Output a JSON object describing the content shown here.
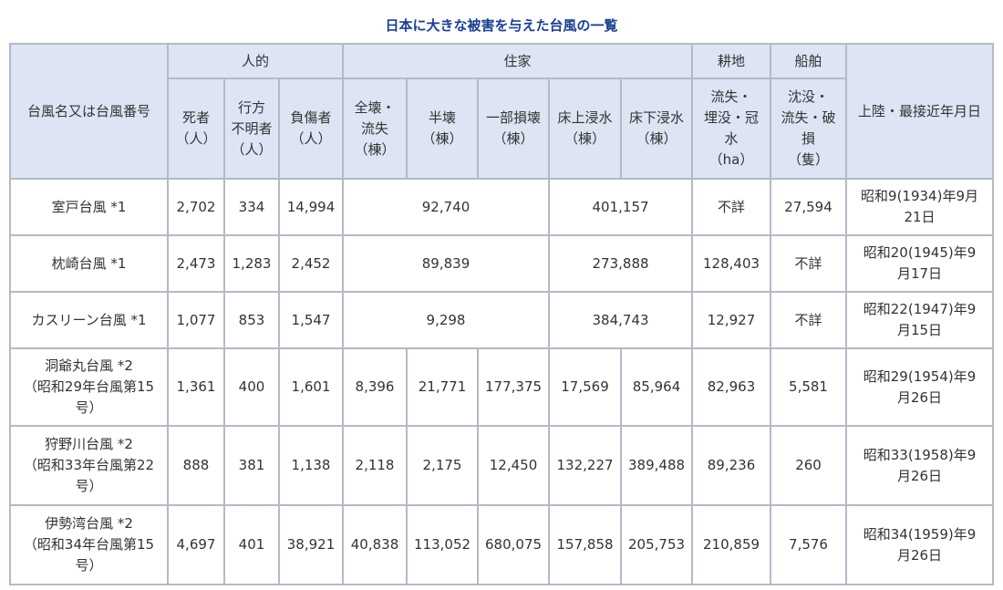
{
  "caption": "日本に大きな被害を与えた台風の一覧",
  "header": {
    "name_col": "台風名又は台風番号",
    "groups": {
      "human": "人的",
      "housing": "住家",
      "farmland": "耕地",
      "ships": "船舶"
    },
    "date_col": "上陸・最接近年月日",
    "sub": {
      "deaths": [
        "死者",
        "（人）"
      ],
      "missing": [
        "行方",
        "不明者",
        "（人）"
      ],
      "injured": [
        "負傷者",
        "（人）"
      ],
      "destroyed": [
        "全壊・",
        "流失",
        "（棟）"
      ],
      "half": [
        "半壊",
        "（棟）"
      ],
      "partial": [
        "一部損壊",
        "（棟）"
      ],
      "above_floor": [
        "床上浸水",
        "（棟）"
      ],
      "below_floor": [
        "床下浸水",
        "（棟）"
      ],
      "farmland_detail": [
        "流失・",
        "埋没・冠",
        "水",
        "（ha）"
      ],
      "ships_detail": [
        "沈没・",
        "流失・破",
        "損",
        "（隻）"
      ]
    }
  },
  "rows": [
    {
      "name": [
        "室戸台風 *1"
      ],
      "deaths": "2,702",
      "missing": "334",
      "injured": "14,994",
      "housing_damage": "92,740",
      "flood": "401,157",
      "farmland": "不詳",
      "ships": "27,594",
      "date": [
        "昭和9(1934)年9月",
        "21日"
      ]
    },
    {
      "name": [
        "枕崎台風 *1"
      ],
      "deaths": "2,473",
      "missing": "1,283",
      "injured": "2,452",
      "housing_damage": "89,839",
      "flood": "273,888",
      "farmland": "128,403",
      "ships": "不詳",
      "date": [
        "昭和20(1945)年9",
        "月17日"
      ]
    },
    {
      "name": [
        "カスリーン台風 *1"
      ],
      "deaths": "1,077",
      "missing": "853",
      "injured": "1,547",
      "housing_damage": "9,298",
      "flood": "384,743",
      "farmland": "12,927",
      "ships": "不詳",
      "date": [
        "昭和22(1947)年9",
        "月15日"
      ]
    },
    {
      "name": [
        "洞爺丸台風 *2",
        "（昭和29年台風第15",
        "号）"
      ],
      "deaths": "1,361",
      "missing": "400",
      "injured": "1,601",
      "destroyed": "8,396",
      "half": "21,771",
      "partial": "177,375",
      "above_floor": "17,569",
      "below_floor": "85,964",
      "farmland": "82,963",
      "ships": "5,581",
      "date": [
        "昭和29(1954)年9",
        "月26日"
      ]
    },
    {
      "name": [
        "狩野川台風 *2",
        "（昭和33年台風第22",
        "号）"
      ],
      "deaths": "888",
      "missing": "381",
      "injured": "1,138",
      "destroyed": "2,118",
      "half": "2,175",
      "partial": "12,450",
      "above_floor": "132,227",
      "below_floor": "389,488",
      "farmland": "89,236",
      "ships": "260",
      "date": [
        "昭和33(1958)年9",
        "月26日"
      ]
    },
    {
      "name": [
        "伊勢湾台風 *2",
        "（昭和34年台風第15",
        "号）"
      ],
      "deaths": "4,697",
      "missing": "401",
      "injured": "38,921",
      "destroyed": "40,838",
      "half": "113,052",
      "partial": "680,075",
      "above_floor": "157,858",
      "below_floor": "205,753",
      "farmland": "210,859",
      "ships": "7,576",
      "date": [
        "昭和34(1959)年9",
        "月26日"
      ]
    }
  ]
}
